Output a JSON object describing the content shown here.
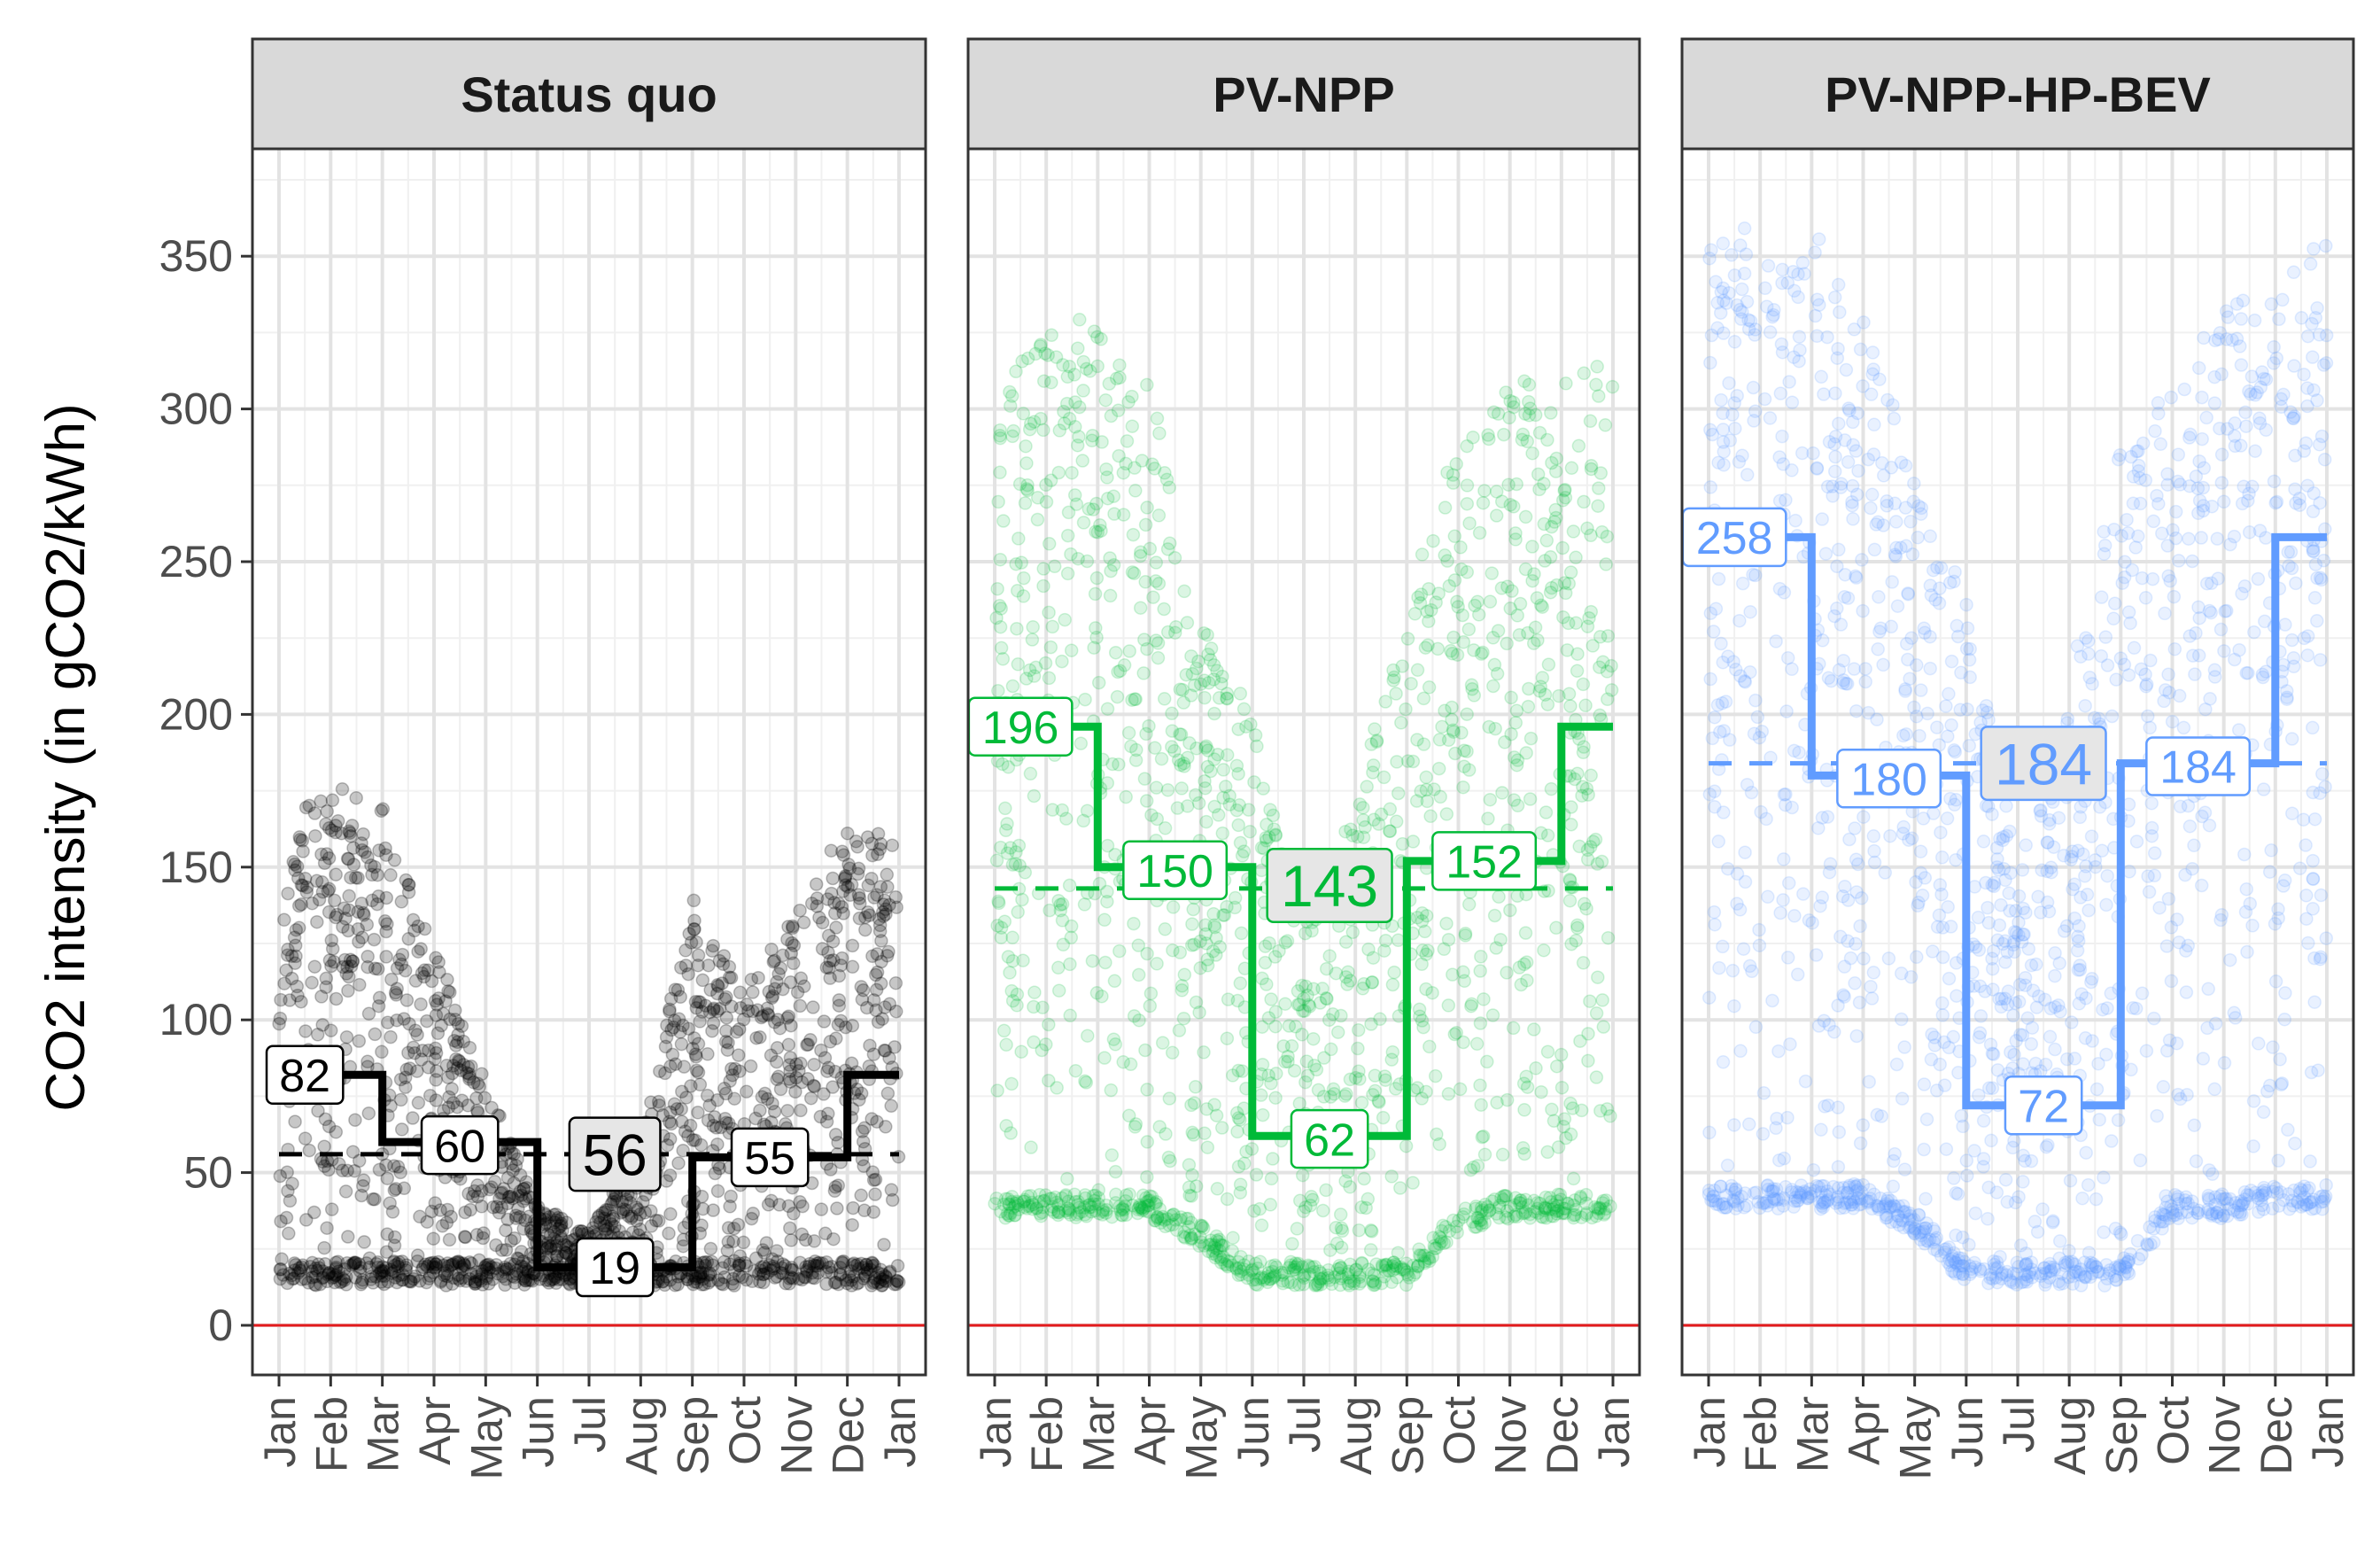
{
  "chart_data": {
    "type": "scatter",
    "ylabel": "CO2 intensity (in gCO2/kWh)",
    "ylim": [
      -17,
      380
    ],
    "yticks": [
      0,
      50,
      100,
      150,
      200,
      250,
      300,
      350
    ],
    "xticks": [
      "Jan",
      "Feb",
      "Mar",
      "Apr",
      "May",
      "Jun",
      "Jul",
      "Aug",
      "Sep",
      "Oct",
      "Nov",
      "Dec",
      "Jan"
    ],
    "grid": true,
    "reference_line": {
      "y": 0,
      "color": "#e31a1c"
    },
    "colors": {
      "Status quo": "#000000",
      "PV-NPP": "#00ba38",
      "PV-NPP-HP-BEV": "#619cff"
    },
    "panels": [
      {
        "title": "Status quo",
        "color": "#000000",
        "annual_mean": 56,
        "periods": [
          {
            "start": 0,
            "end": 2,
            "value": 82
          },
          {
            "start": 2,
            "end": 5,
            "value": 60
          },
          {
            "start": 5,
            "end": 8,
            "value": 19
          },
          {
            "start": 8,
            "end": 11,
            "value": 55
          },
          {
            "start": 11,
            "end": 12,
            "value": 82
          }
        ],
        "labels": [
          {
            "text": "82",
            "x": 0.5,
            "y": 82
          },
          {
            "text": "60",
            "x": 3.5,
            "y": 59
          },
          {
            "text": "56",
            "x": 6.5,
            "y": 56,
            "main": true
          },
          {
            "text": "19",
            "x": 6.5,
            "y": 19
          },
          {
            "text": "55",
            "x": 9.5,
            "y": 55
          }
        ],
        "monthly_range": [
          [
            13,
            160
          ],
          [
            13,
            180
          ],
          [
            13,
            170
          ],
          [
            13,
            125
          ],
          [
            13,
            80
          ],
          [
            13,
            40
          ],
          [
            13,
            30
          ],
          [
            13,
            60
          ],
          [
            13,
            140
          ],
          [
            13,
            110
          ],
          [
            13,
            135
          ],
          [
            13,
            165
          ],
          [
            13,
            160
          ]
        ]
      },
      {
        "title": "PV-NPP",
        "color": "#00ba38",
        "annual_mean": 143,
        "periods": [
          {
            "start": 0,
            "end": 2,
            "value": 196
          },
          {
            "start": 2,
            "end": 5,
            "value": 150
          },
          {
            "start": 5,
            "end": 8,
            "value": 62
          },
          {
            "start": 8,
            "end": 11,
            "value": 152
          },
          {
            "start": 11,
            "end": 12,
            "value": 196
          }
        ],
        "labels": [
          {
            "text": "196",
            "x": 0.5,
            "y": 196
          },
          {
            "text": "150",
            "x": 3.5,
            "y": 149
          },
          {
            "text": "143",
            "x": 6.5,
            "y": 144,
            "main": true
          },
          {
            "text": "62",
            "x": 6.5,
            "y": 61
          },
          {
            "text": "152",
            "x": 9.5,
            "y": 152
          }
        ],
        "monthly_range": [
          [
            35,
            300
          ],
          [
            35,
            330
          ],
          [
            35,
            330
          ],
          [
            35,
            310
          ],
          [
            25,
            230
          ],
          [
            13,
            200
          ],
          [
            13,
            130
          ],
          [
            13,
            170
          ],
          [
            13,
            240
          ],
          [
            30,
            290
          ],
          [
            35,
            310
          ],
          [
            35,
            310
          ],
          [
            35,
            320
          ]
        ]
      },
      {
        "title": "PV-NPP-HP-BEV",
        "color": "#619cff",
        "annual_mean": 184,
        "periods": [
          {
            "start": 0,
            "end": 2,
            "value": 258
          },
          {
            "start": 2,
            "end": 5,
            "value": 180
          },
          {
            "start": 5,
            "end": 8,
            "value": 72
          },
          {
            "start": 8,
            "end": 11,
            "value": 184
          },
          {
            "start": 11,
            "end": 12,
            "value": 258
          }
        ],
        "labels": [
          {
            "text": "258",
            "x": 0.5,
            "y": 258
          },
          {
            "text": "180",
            "x": 3.5,
            "y": 179
          },
          {
            "text": "184",
            "x": 6.5,
            "y": 184,
            "main": true
          },
          {
            "text": "72",
            "x": 6.5,
            "y": 72
          },
          {
            "text": "184",
            "x": 9.5,
            "y": 183
          }
        ],
        "monthly_range": [
          [
            38,
            355
          ],
          [
            38,
            365
          ],
          [
            38,
            360
          ],
          [
            38,
            330
          ],
          [
            30,
            280
          ],
          [
            13,
            240
          ],
          [
            13,
            150
          ],
          [
            13,
            210
          ],
          [
            13,
            290
          ],
          [
            35,
            310
          ],
          [
            35,
            335
          ],
          [
            38,
            340
          ],
          [
            38,
            357
          ]
        ]
      }
    ]
  }
}
